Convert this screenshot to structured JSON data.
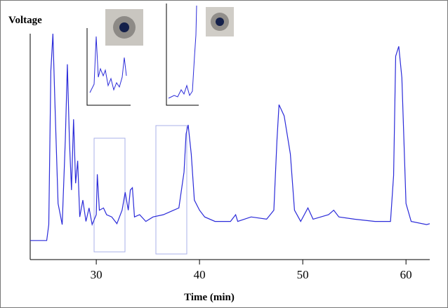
{
  "chart_data": {
    "type": "line",
    "y_label": "Voltage",
    "x_label": "Time (min)",
    "xlim": [
      23.6,
      62.3
    ],
    "ylim": [
      0,
      105
    ],
    "xticks": [
      30,
      40,
      50,
      60
    ],
    "series": [
      {
        "color": "#2b2bd9",
        "x": [
          23.6,
          25.2,
          25.4,
          25.6,
          25.8,
          26.0,
          26.3,
          26.7,
          27.0,
          27.2,
          27.4,
          27.6,
          27.8,
          28.0,
          28.2,
          28.4,
          28.7,
          29.0,
          29.3,
          29.6,
          30.0,
          30.1,
          30.3,
          30.7,
          31.0,
          31.5,
          32.0,
          32.5,
          32.8,
          33.1,
          33.3,
          33.5,
          33.7,
          34.2,
          34.8,
          35.5,
          36.5,
          37.5,
          38.0,
          38.5,
          38.7,
          38.9,
          39.2,
          39.5,
          40.0,
          40.5,
          41.5,
          43.0,
          43.5,
          43.7,
          45.0,
          46.5,
          47.2,
          47.5,
          47.7,
          48.2,
          48.8,
          49.2,
          49.8,
          50.5,
          51.0,
          52.5,
          53.0,
          53.5,
          55.0,
          57.0,
          58.5,
          58.8,
          59.0,
          59.3,
          59.6,
          60.0,
          60.5,
          62.0,
          62.3
        ],
        "values": [
          8.5,
          8.5,
          15.6,
          84,
          100.6,
          69,
          25,
          15.6,
          53,
          87,
          53,
          31,
          62.5,
          34,
          44,
          19,
          26.5,
          17,
          23,
          15.6,
          20,
          38,
          22,
          23,
          20,
          19,
          16,
          22,
          30,
          22,
          31,
          32,
          19,
          20,
          17,
          19,
          20,
          22,
          23,
          39,
          56,
          60,
          47,
          26.5,
          22,
          19,
          17,
          17,
          20,
          17,
          19,
          18,
          22,
          53,
          69,
          64,
          47,
          22,
          17,
          23,
          18,
          20,
          22,
          19,
          18,
          17,
          17,
          37.5,
          90.6,
          95,
          81,
          25,
          17,
          15.6,
          16
        ]
      }
    ]
  }
}
